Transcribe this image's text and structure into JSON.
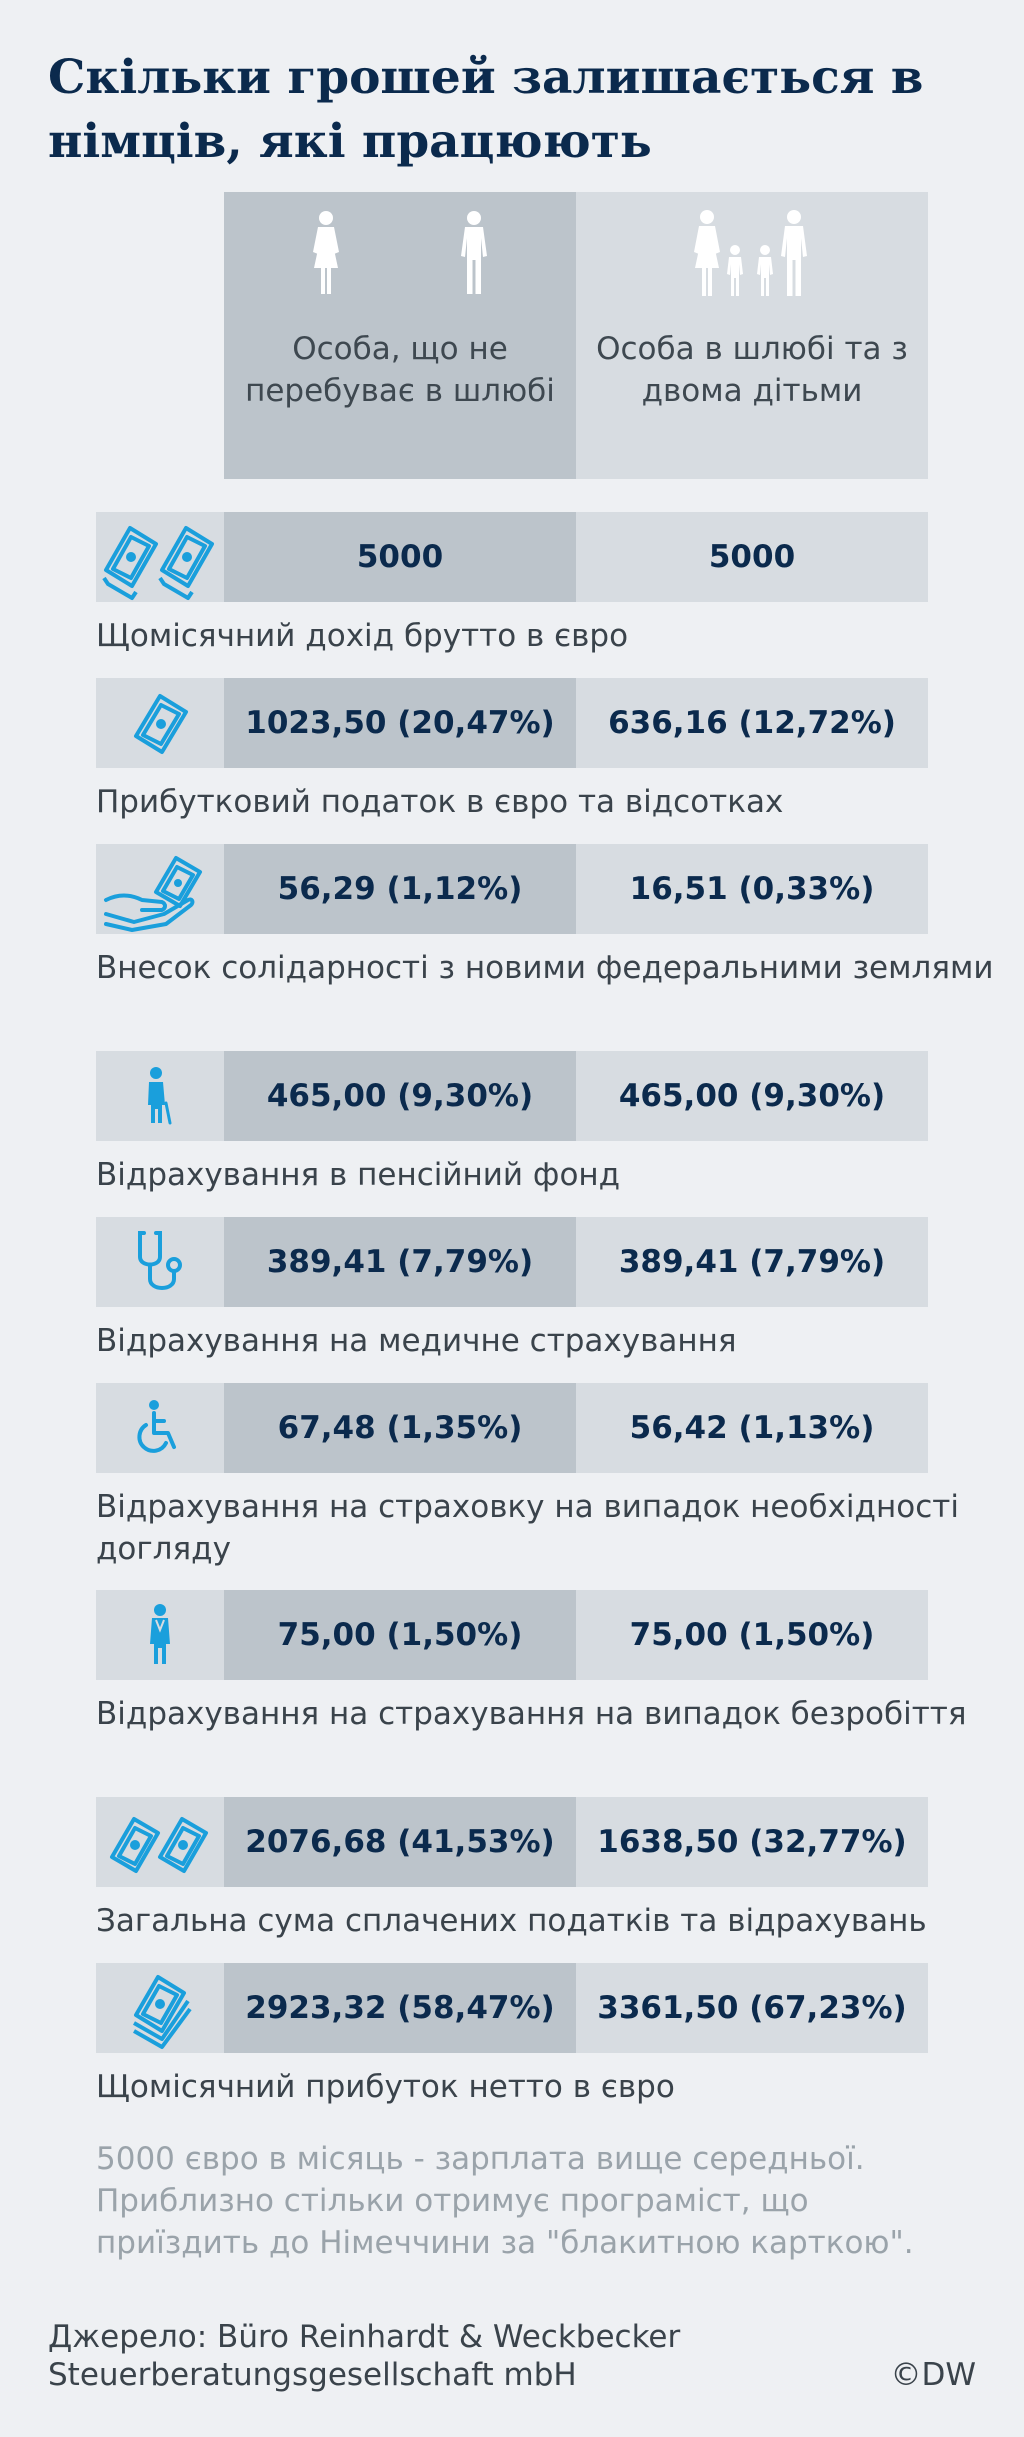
{
  "title": "Скільки грошей залишається в німців, які працюють",
  "columns": [
    {
      "label": "Особа, що не перебуває в шлюбі"
    },
    {
      "label": "Особа в шлюбі та з двома дітьми"
    }
  ],
  "rows": [
    {
      "icon": "banknotes-icon",
      "v1": "5000",
      "v2": "5000",
      "label": "Щомісячний дохід брутто в євро"
    },
    {
      "icon": "banknote-icon",
      "v1": "1023,50 (20,47%)",
      "v2": "636,16 (12,72%)",
      "label": "Прибутковий податок в євро та відсотках"
    },
    {
      "icon": "hand-money-icon",
      "v1": "56,29 (1,12%)",
      "v2": "16,51 (0,33%)",
      "label": "Внесок солідарності з новими федеральними землями"
    },
    {
      "icon": "elderly-person-icon",
      "v1": "465,00 (9,30%)",
      "v2": "465,00 (9,30%)",
      "label": "Відрахування в пенсійний фонд"
    },
    {
      "icon": "stethoscope-icon",
      "v1": "389,41 (7,79%)",
      "v2": "389,41 (7,79%)",
      "label": "Відрахування на медичне страхування"
    },
    {
      "icon": "wheelchair-icon",
      "v1": "67,48 (1,35%)",
      "v2": "56,42 (1,13%)",
      "label": "Відрахування на страховку на випадок необхідності догляду"
    },
    {
      "icon": "worker-icon",
      "v1": "75,00 (1,50%)",
      "v2": "75,00 (1,50%)",
      "label": "Відрахування на страхування на випадок безробіття"
    },
    {
      "icon": "banknotes-icon",
      "v1": "2076,68 (41,53%)",
      "v2": "1638,50 (32,77%)",
      "label": "Загальна сума сплачених податків та відрахувань"
    },
    {
      "icon": "banknote-stack-icon",
      "v1": "2923,32 (58,47%)",
      "v2": "3361,50 (67,23%)",
      "label": "Щомісячний прибуток нетто в євро"
    }
  ],
  "note": "5000 євро в місяць - зарплата вище середньої. Приблизно стільки отримує програміст, що приїздить до Німеччини за \"блакитною карткою\".",
  "source": {
    "line1": "Джерело: Büro Reinhardt & Weckbecker",
    "line2": "Steuerberatungsgesellschaft mbH"
  },
  "credit": "©DW",
  "colors": {
    "accent": "#1a9fdc",
    "title": "#0b2a4d",
    "col1": "#bcc4cb",
    "col2": "#d7dce1"
  }
}
